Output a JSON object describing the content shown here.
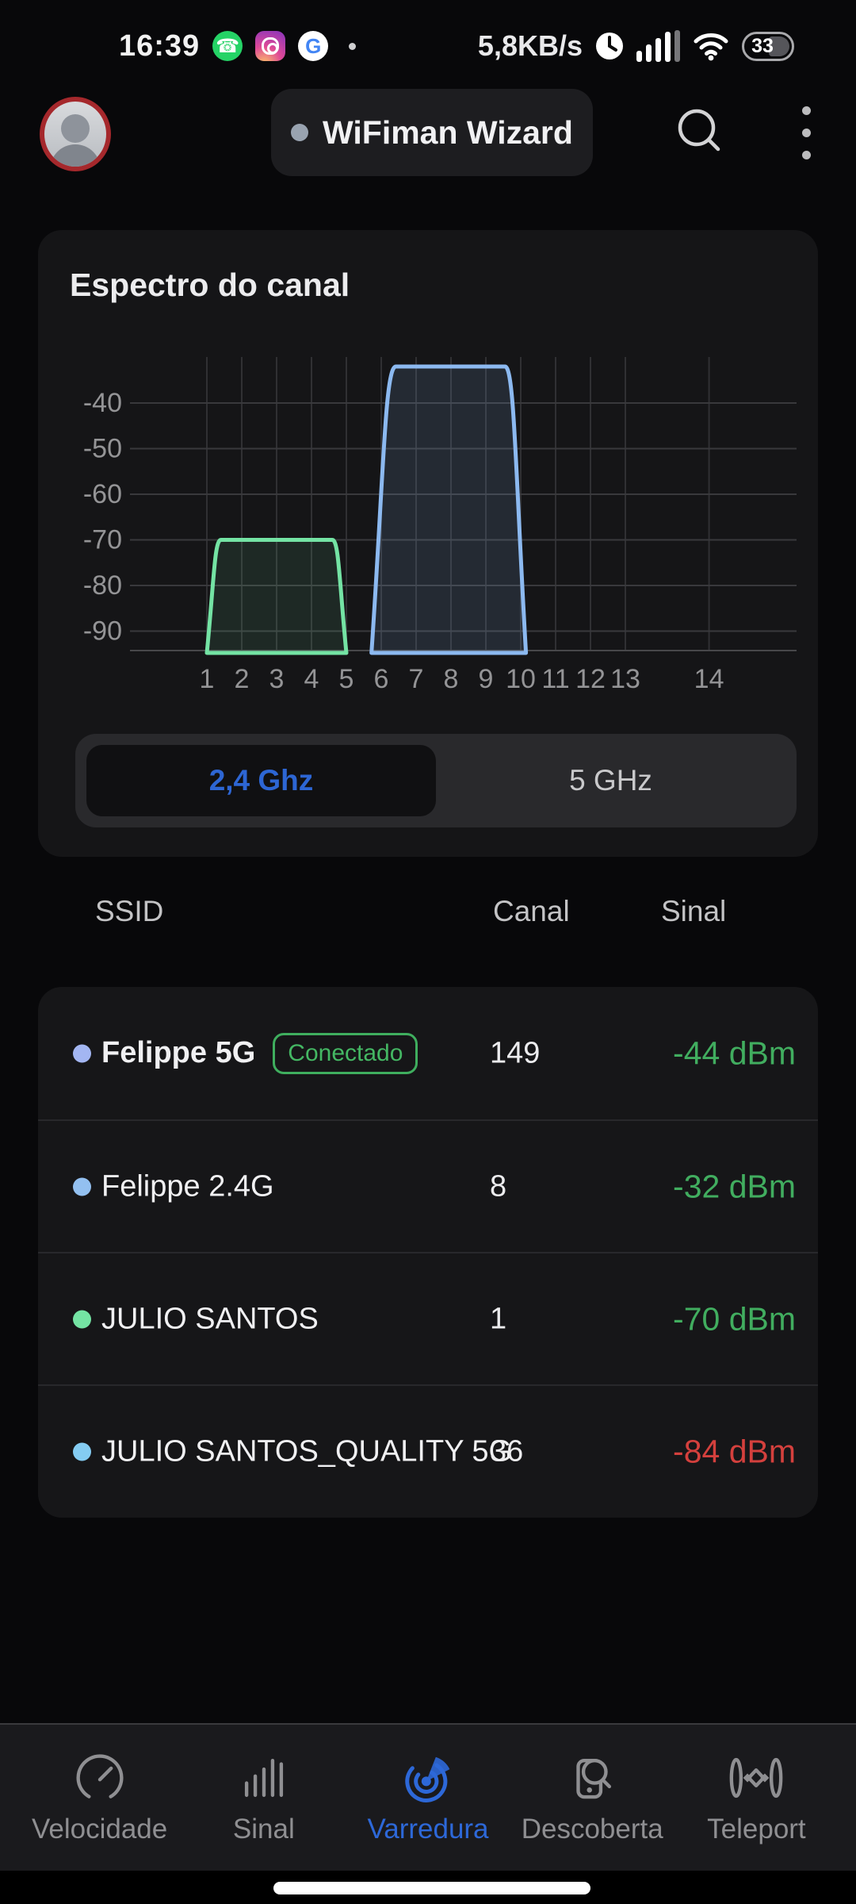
{
  "status_bar": {
    "time": "16:39",
    "net_speed": "5,8KB/s",
    "battery_percent": "33",
    "google_letter": "G"
  },
  "header": {
    "title": "WiFiman Wizard"
  },
  "spectrum": {
    "card_title": "Espectro do canal",
    "bands": [
      {
        "label": "2,4 Ghz",
        "selected": true
      },
      {
        "label": "5 GHz",
        "selected": false
      }
    ]
  },
  "chart_data": {
    "type": "area",
    "title": "Espectro do canal",
    "x_ticks": [
      "1",
      "2",
      "3",
      "4",
      "5",
      "6",
      "7",
      "8",
      "9",
      "10",
      "11",
      "12",
      "13",
      "14"
    ],
    "y_ticks": [
      "-40",
      "-50",
      "-60",
      "-70",
      "-80",
      "-90"
    ],
    "ylim": [
      -95,
      -30
    ],
    "grid": true,
    "channel14_offset_units": 2.4,
    "series": [
      {
        "name": "JULIO SANTOS",
        "color": "#74e3a4",
        "fill": "rgba(116,227,164,0.10)",
        "base_channels": [
          1.0,
          5.0
        ],
        "plateau_channels": [
          1.4,
          4.6
        ],
        "peak_dbm": -70
      },
      {
        "name": "Felippe 2.4G",
        "color": "#8cb9f0",
        "fill": "rgba(140,185,240,0.13)",
        "base_channels": [
          5.72,
          10.15
        ],
        "plateau_channels": [
          6.42,
          9.55
        ],
        "peak_dbm": -32
      }
    ]
  },
  "table": {
    "headers": [
      "SSID",
      "Canal",
      "Sinal"
    ],
    "rows": [
      {
        "ssid": "Felippe 5G",
        "badge": "Conectado",
        "channel": "149",
        "signal": "-44 dBm",
        "signal_color": "#41ad5f",
        "dot_color": "#a3b6f2",
        "connected": true
      },
      {
        "ssid": "Felippe 2.4G",
        "channel": "8",
        "signal": "-32 dBm",
        "signal_color": "#41ad5f",
        "dot_color": "#93c0f0",
        "connected": false
      },
      {
        "ssid": "JULIO SANTOS",
        "channel": "1",
        "signal": "-70 dBm",
        "signal_color": "#41ad5f",
        "dot_color": "#74e3a3",
        "connected": false
      },
      {
        "ssid": "JULIO SANTOS_QUALITY 5G",
        "channel": "36",
        "signal": "-84 dBm",
        "signal_color": "#d4403d",
        "dot_color": "#84ccf2",
        "connected": false
      }
    ]
  },
  "nav": {
    "items": [
      {
        "label": "Velocidade",
        "icon": "speedometer-icon",
        "active": false
      },
      {
        "label": "Sinal",
        "icon": "signal-bars-icon",
        "active": false
      },
      {
        "label": "Varredura",
        "icon": "radar-icon",
        "active": true
      },
      {
        "label": "Descoberta",
        "icon": "device-search-icon",
        "active": false
      },
      {
        "label": "Teleport",
        "icon": "teleport-icon",
        "active": false
      }
    ]
  },
  "colors": {
    "accent_blue": "#2d66d4",
    "signal_green": "#41ad5f",
    "signal_red": "#d4403d",
    "badge_green": "#3fae5e"
  }
}
